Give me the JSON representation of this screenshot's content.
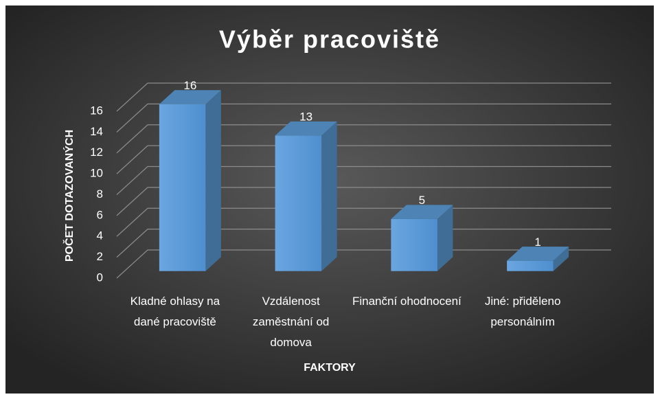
{
  "chart_data": {
    "type": "bar3d",
    "title": "Výběr pracoviště",
    "categories": [
      "Kladné ohlasy na dané pracoviště",
      "Vzdálenost zaměstnání od domova",
      "Finanční ohodnocení",
      "Jiné: přiděleno personálním"
    ],
    "values": [
      16,
      13,
      5,
      1
    ],
    "color": "#5b9bd5",
    "xlabel": "FAKTORY",
    "ylabel": "POČET DOTAZOVANÝCH",
    "ylim": [
      0,
      16
    ],
    "yticks": [
      0,
      2,
      4,
      6,
      8,
      10,
      12,
      14,
      16
    ],
    "grid": true
  }
}
